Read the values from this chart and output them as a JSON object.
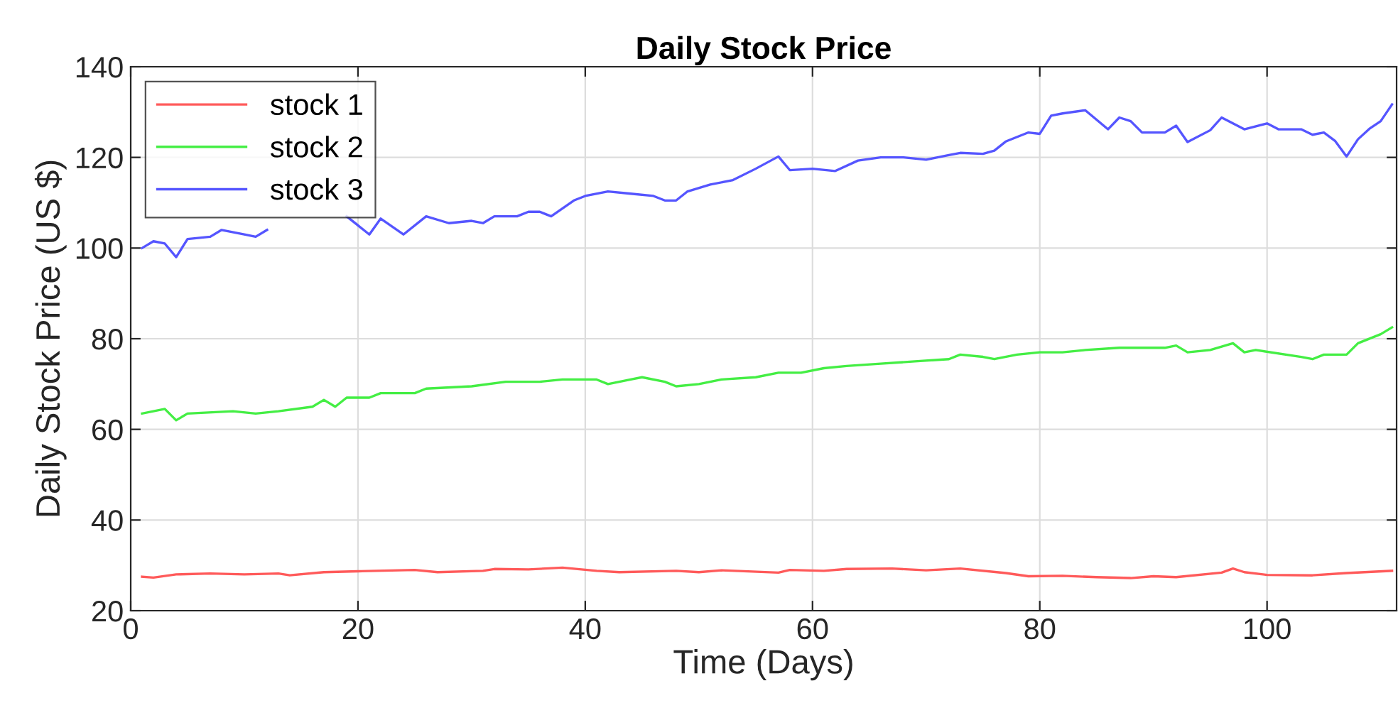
{
  "chart_data": {
    "type": "line",
    "title": "Daily Stock Price",
    "xlabel": "Time (Days)",
    "ylabel": "Daily Stock Price (US $)",
    "xlim": [
      0,
      111.4
    ],
    "ylim": [
      20,
      140
    ],
    "xticks": [
      0,
      20,
      40,
      60,
      80,
      100
    ],
    "yticks": [
      20,
      40,
      60,
      80,
      100,
      120,
      140
    ],
    "grid": true,
    "legend": "top left",
    "marker": "none",
    "line_style": "solid",
    "series": [
      {
        "name": "stock 1",
        "color": "#ff5a5a",
        "x": [
          1,
          2,
          4,
          7,
          10,
          13,
          14,
          17,
          20,
          25,
          27,
          31,
          32,
          35,
          38,
          41,
          43,
          48,
          50,
          52,
          57,
          58,
          61,
          63,
          67,
          70,
          73,
          77,
          79,
          82,
          85,
          88,
          90,
          92,
          96,
          97,
          98,
          100,
          104,
          107,
          111
        ],
        "values": [
          27.5,
          27.3,
          28,
          28.2,
          28,
          28.2,
          27.8,
          28.5,
          28.7,
          29,
          28.5,
          28.8,
          29.2,
          29.1,
          29.5,
          28.8,
          28.5,
          28.8,
          28.5,
          28.9,
          28.4,
          29,
          28.8,
          29.2,
          29.3,
          28.9,
          29.3,
          28.3,
          27.6,
          27.7,
          27.4,
          27.2,
          27.6,
          27.4,
          28.4,
          29.3,
          28.5,
          27.9,
          27.8,
          28.3,
          28.8
        ]
      },
      {
        "name": "stock 2",
        "color": "#44ee44",
        "x": [
          1,
          3,
          4,
          5,
          9,
          11,
          13,
          16,
          17,
          18,
          19,
          21,
          22,
          25,
          26,
          30,
          33,
          36,
          38,
          41,
          42,
          44,
          45,
          47,
          48,
          50,
          52,
          55,
          57,
          59,
          61,
          63,
          66,
          69,
          72,
          73,
          75,
          76,
          78,
          80,
          82,
          84,
          87,
          91,
          92,
          93,
          95,
          97,
          98,
          99,
          103,
          104,
          105,
          107,
          108,
          110,
          111
        ],
        "values": [
          63.5,
          64.5,
          62,
          63.5,
          64,
          63.5,
          64,
          65,
          66.5,
          65,
          67,
          67,
          68,
          68,
          69,
          69.5,
          70.5,
          70.5,
          71,
          71,
          70,
          71,
          71.5,
          70.5,
          69.5,
          70,
          71,
          71.5,
          72.5,
          72.5,
          73.5,
          74,
          74.5,
          75,
          75.5,
          76.5,
          76,
          75.5,
          76.5,
          77,
          77,
          77.5,
          78,
          78,
          78.5,
          77,
          77.5,
          79,
          77,
          77.5,
          76,
          75.5,
          76.5,
          76.5,
          79,
          81,
          82.5
        ]
      },
      {
        "name": "stock 3",
        "color": "#5555ff",
        "x": [
          1,
          2,
          3,
          4,
          5,
          7,
          8,
          10,
          11,
          12,
          14,
          16,
          18,
          19,
          20,
          21,
          22,
          24,
          26,
          28,
          30,
          31,
          32,
          34,
          35,
          36,
          37,
          39,
          40,
          42,
          44,
          46,
          47,
          48,
          49,
          51,
          53,
          55,
          57,
          58,
          60,
          62,
          64,
          66,
          68,
          70,
          72,
          73,
          75,
          76,
          77,
          79,
          80,
          81,
          82,
          84,
          86,
          87,
          88,
          89,
          91,
          92,
          93,
          95,
          96,
          98,
          100,
          101,
          103,
          104,
          105,
          106,
          107,
          108,
          109,
          110,
          111
        ],
        "values": [
          100,
          101.5,
          101,
          98,
          102,
          102.5,
          104,
          103,
          102.5,
          104,
          null,
          null,
          null,
          107,
          105,
          103,
          106.5,
          103,
          107,
          105.5,
          106,
          105.5,
          107,
          107,
          108,
          108,
          107,
          110.5,
          111.5,
          112.5,
          112,
          111.5,
          110.5,
          110.5,
          112.5,
          114,
          115,
          117.5,
          120.2,
          117.2,
          117.5,
          117,
          119.3,
          120,
          120,
          119.5,
          120.5,
          121,
          120.8,
          121.5,
          123.5,
          125.5,
          125.2,
          129.2,
          129.7,
          130.4,
          126.2,
          128.8,
          128,
          125.5,
          125.5,
          127,
          123.4,
          126,
          128.8,
          126.2,
          127.5,
          126.2,
          126.2,
          125,
          125.5,
          123.6,
          120.2,
          124,
          126.3,
          128,
          131.7
        ]
      }
    ]
  }
}
